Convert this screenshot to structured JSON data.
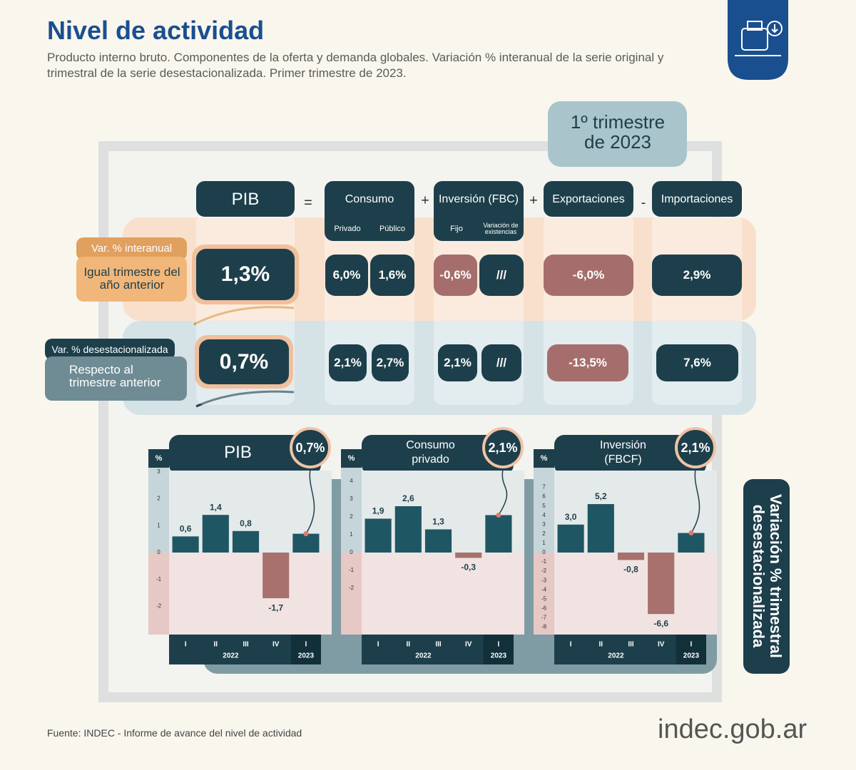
{
  "title": "Nivel de actividad",
  "subtitle": "Producto interno bruto. Componentes de la oferta y demanda globales. Variación % interanual de la serie original y trimestral de la serie desestacionalizada. Primer trimestre de 2023.",
  "period": "1º trimestre de 2023",
  "table": {
    "columns": [
      "PIB",
      "Consumo",
      "Inversión (FBC)",
      "Exportaciones",
      "Importaciones"
    ],
    "operators": [
      "=",
      "+",
      "+",
      "-"
    ],
    "consumo_sub": [
      "Privado",
      "Público"
    ],
    "inversion_sub": [
      "Fijo",
      "Variación de existencias"
    ],
    "rows": [
      {
        "tag": "Var. % interanual",
        "description": "Igual trimestre del año anterior",
        "values": [
          "1,3%",
          "6,0%",
          "1,6%",
          "-0,6%",
          "///",
          "-6,0%",
          "2,9%"
        ]
      },
      {
        "tag": "Var. % desestacionalizada",
        "description": "Respecto al trimestre anterior",
        "values": [
          "0,7%",
          "2,1%",
          "2,7%",
          "2,1%",
          "///",
          "-13,5%",
          "7,6%"
        ]
      }
    ]
  },
  "side_label": "Variación % trimestral desestacionalizada",
  "source": "Fuente: INDEC - Informe de avance del nivel de actividad",
  "logo": "indec.gob.ar",
  "chart_data": [
    {
      "type": "bar",
      "title": "PIB",
      "y_label": "%",
      "categories": [
        "I",
        "II",
        "III",
        "IV",
        "I"
      ],
      "groups": [
        "2022",
        "2023"
      ],
      "values": [
        0.6,
        1.4,
        0.8,
        -1.7,
        0.7
      ],
      "value_labels": [
        "0,6",
        "1,4",
        "0,8",
        "-1,7",
        "0,7%"
      ],
      "color": "#1f5663",
      "negative_color": "#a8716e",
      "ylim": [
        -3.05,
        3.05
      ],
      "yticks": [
        3,
        2,
        1,
        0,
        -1,
        -2
      ]
    },
    {
      "type": "bar",
      "title": "Consumo privado",
      "y_label": "%",
      "categories": [
        "I",
        "II",
        "III",
        "IV",
        "I"
      ],
      "groups": [
        "2022",
        "2023"
      ],
      "values": [
        1.9,
        2.6,
        1.3,
        -0.3,
        2.1
      ],
      "value_labels": [
        "1,9",
        "2,6",
        "1,3",
        "-0,3",
        "2,1%"
      ],
      "color": "#1f5663",
      "negative_color": "#a8716e",
      "ylim": [
        -4.6,
        4.6
      ],
      "yticks": [
        4,
        3,
        2,
        1,
        0,
        -1,
        -2
      ]
    },
    {
      "type": "bar",
      "title": "Inversión (FBCF)",
      "y_label": "%",
      "categories": [
        "I",
        "II",
        "III",
        "IV",
        "I"
      ],
      "groups": [
        "2022",
        "2023"
      ],
      "values": [
        3.0,
        5.2,
        -0.8,
        -6.6,
        2.1
      ],
      "value_labels": [
        "3,0",
        "5,2",
        "-0,8",
        "-6,6",
        "2,1%"
      ],
      "color": "#1f5663",
      "negative_color": "#a8716e",
      "ylim": [
        -8.8,
        8.8
      ],
      "yticks": [
        7,
        6,
        5,
        4,
        3,
        2,
        1,
        0,
        -1,
        -2,
        -3,
        -4,
        -5,
        -6,
        -7,
        -8
      ]
    }
  ]
}
